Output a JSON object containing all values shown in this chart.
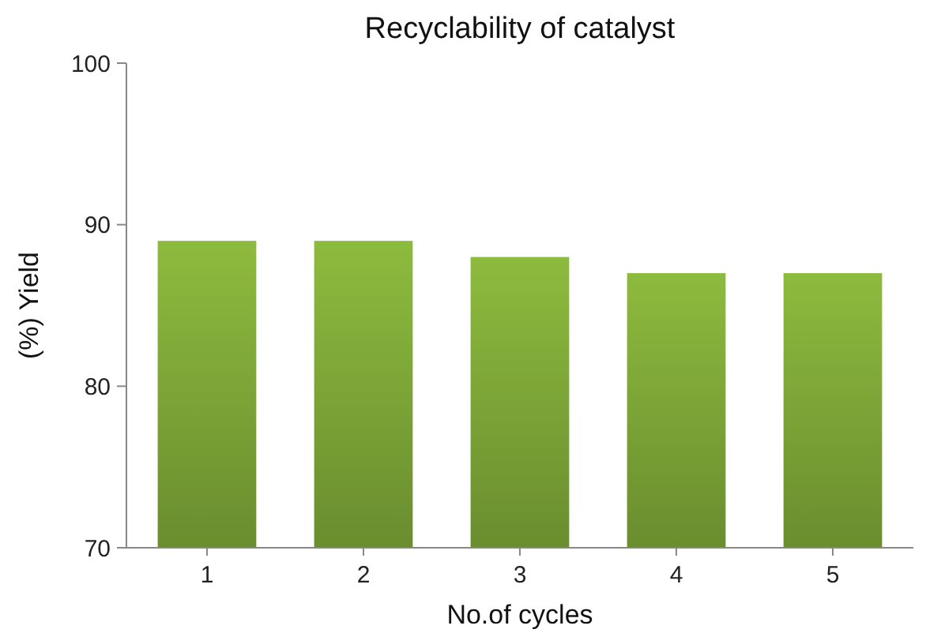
{
  "chart_data": {
    "type": "bar",
    "title": "Recyclability of catalyst",
    "xlabel": "No.of cycles",
    "ylabel": "(%) Yield",
    "categories": [
      "1",
      "2",
      "3",
      "4",
      "5"
    ],
    "values": [
      89,
      89,
      88,
      87,
      87
    ],
    "color": "#8dbb3e",
    "ylim": [
      70,
      100
    ],
    "yticks": [
      70,
      80,
      90,
      100
    ],
    "grid": false
  }
}
